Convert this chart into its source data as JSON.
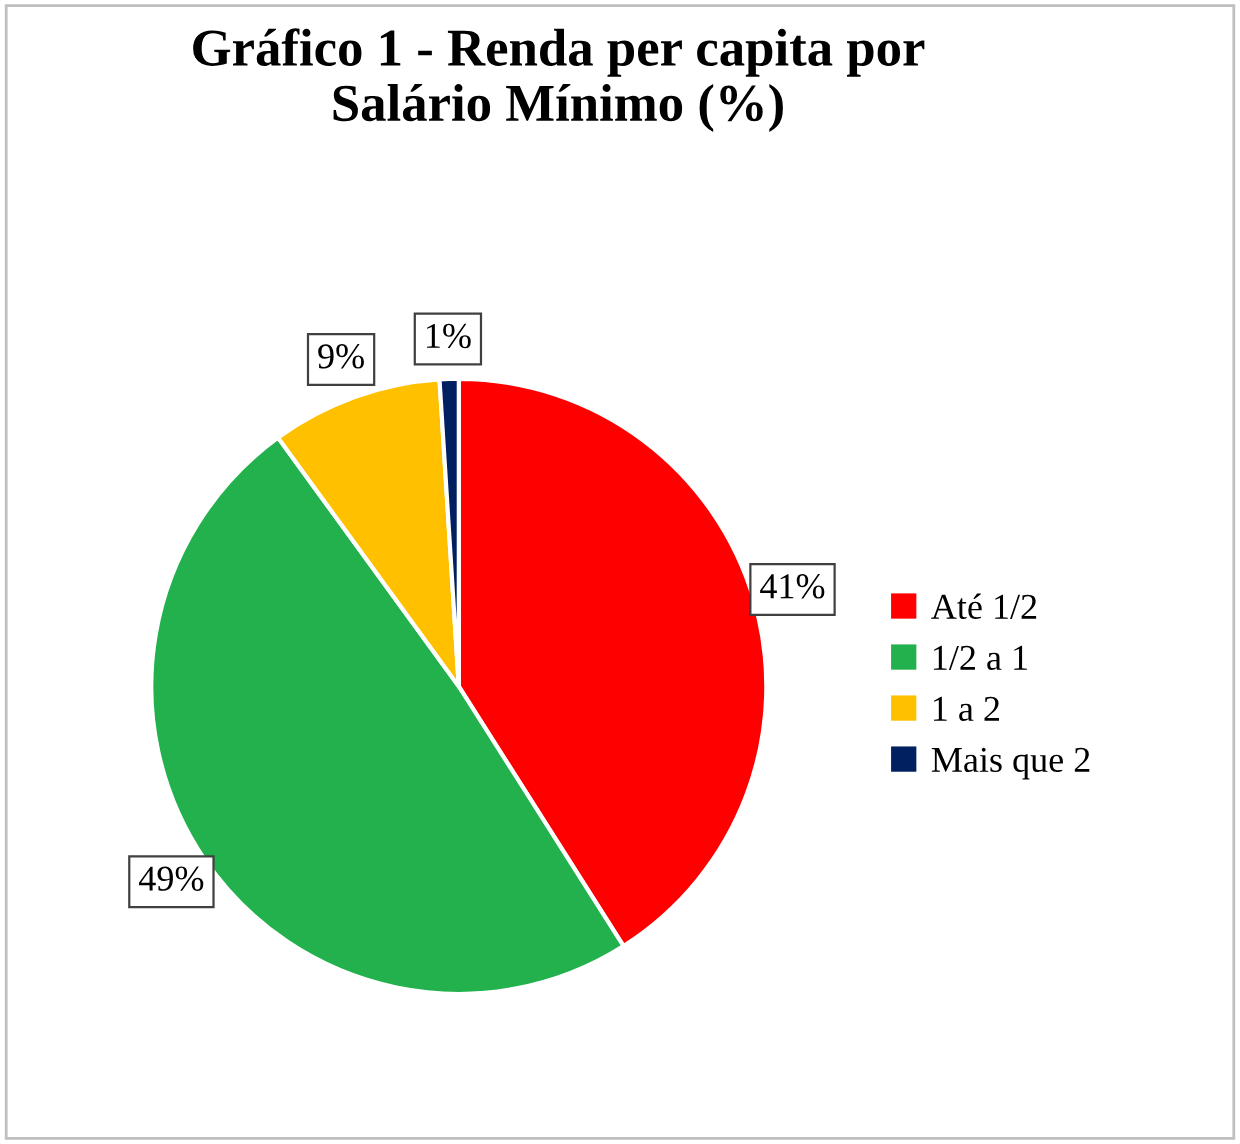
{
  "chart_data": {
    "type": "pie",
    "title": "Gráfico 1 - Renda per capita por\nSalário Mínimo (%)",
    "categories": [
      "Até 1/2",
      "1/2 a 1",
      "1 a 2",
      "Mais que 2"
    ],
    "values": [
      41,
      49,
      9,
      1
    ],
    "colors": [
      "#ff0000",
      "#22b14c",
      "#ffc000",
      "#002060"
    ],
    "value_labels": [
      "41%",
      "49%",
      "9%",
      "1%"
    ],
    "legend": "right"
  }
}
